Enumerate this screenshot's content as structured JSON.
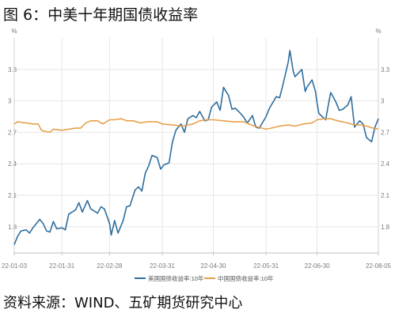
{
  "page": {
    "title": "图 6：中美十年期国债收益率",
    "source": "资料来源：WIND、五矿期货研究中心"
  },
  "colors": {
    "us": "#2e6e9e",
    "cn": "#e8a04a",
    "grid": "#e6e6e6",
    "axis_text": "#7a7a7a"
  },
  "chart_data": {
    "type": "line",
    "y_unit_left": "%",
    "y_unit_right": "%",
    "ylim": [
      1.55,
      3.6
    ],
    "yticks": [
      1.8,
      2.1,
      2.4,
      2.7,
      3,
      3.3
    ],
    "ytick_labels": [
      "1.8",
      "2.1",
      "2.4",
      "2.7",
      "3",
      "3.3"
    ],
    "xlim": [
      "2022-01-03",
      "2022-08-05"
    ],
    "xticks": [
      "2022-01-03",
      "2022-01-31",
      "2022-02-28",
      "2022-03-31",
      "2022-04-30",
      "2022-05-31",
      "2022-06-30",
      "2022-08-05"
    ],
    "xtick_labels": [
      "22-01-03",
      "22-01-31",
      "22-02-28",
      "22-03-31",
      "22-04-30",
      "22-05-31",
      "22-06-30",
      "22-08-05"
    ],
    "grid": true,
    "legend_position": "bottom",
    "series": [
      {
        "name": "美国国债收益率:10年",
        "color": "#2e6e9e",
        "points": [
          [
            "2022-01-03",
            1.63
          ],
          [
            "2022-01-05",
            1.71
          ],
          [
            "2022-01-07",
            1.76
          ],
          [
            "2022-01-10",
            1.77
          ],
          [
            "2022-01-12",
            1.74
          ],
          [
            "2022-01-14",
            1.79
          ],
          [
            "2022-01-18",
            1.87
          ],
          [
            "2022-01-20",
            1.83
          ],
          [
            "2022-01-22",
            1.76
          ],
          [
            "2022-01-24",
            1.75
          ],
          [
            "2022-01-26",
            1.85
          ],
          [
            "2022-01-28",
            1.78
          ],
          [
            "2022-01-31",
            1.79
          ],
          [
            "2022-02-02",
            1.77
          ],
          [
            "2022-02-04",
            1.92
          ],
          [
            "2022-02-08",
            1.96
          ],
          [
            "2022-02-10",
            2.03
          ],
          [
            "2022-02-12",
            1.94
          ],
          [
            "2022-02-15",
            2.05
          ],
          [
            "2022-02-17",
            1.97
          ],
          [
            "2022-02-21",
            1.93
          ],
          [
            "2022-02-23",
            1.99
          ],
          [
            "2022-02-25",
            1.97
          ],
          [
            "2022-02-28",
            1.83
          ],
          [
            "2022-03-01",
            1.72
          ],
          [
            "2022-03-03",
            1.86
          ],
          [
            "2022-03-05",
            1.74
          ],
          [
            "2022-03-08",
            1.86
          ],
          [
            "2022-03-10",
            1.99
          ],
          [
            "2022-03-12",
            2.0
          ],
          [
            "2022-03-15",
            2.15
          ],
          [
            "2022-03-17",
            2.18
          ],
          [
            "2022-03-19",
            2.14
          ],
          [
            "2022-03-21",
            2.31
          ],
          [
            "2022-03-23",
            2.38
          ],
          [
            "2022-03-25",
            2.48
          ],
          [
            "2022-03-28",
            2.46
          ],
          [
            "2022-03-30",
            2.35
          ],
          [
            "2022-04-01",
            2.39
          ],
          [
            "2022-04-04",
            2.41
          ],
          [
            "2022-04-06",
            2.61
          ],
          [
            "2022-04-08",
            2.72
          ],
          [
            "2022-04-11",
            2.78
          ],
          [
            "2022-04-13",
            2.7
          ],
          [
            "2022-04-15",
            2.83
          ],
          [
            "2022-04-18",
            2.86
          ],
          [
            "2022-04-20",
            2.84
          ],
          [
            "2022-04-22",
            2.9
          ],
          [
            "2022-04-25",
            2.81
          ],
          [
            "2022-04-27",
            2.82
          ],
          [
            "2022-04-29",
            2.94
          ],
          [
            "2022-05-02",
            2.99
          ],
          [
            "2022-05-04",
            2.91
          ],
          [
            "2022-05-06",
            3.13
          ],
          [
            "2022-05-09",
            3.05
          ],
          [
            "2022-05-11",
            2.92
          ],
          [
            "2022-05-13",
            2.93
          ],
          [
            "2022-05-16",
            2.88
          ],
          [
            "2022-05-18",
            2.84
          ],
          [
            "2022-05-20",
            2.79
          ],
          [
            "2022-05-23",
            2.86
          ],
          [
            "2022-05-25",
            2.75
          ],
          [
            "2022-05-27",
            2.74
          ],
          [
            "2022-05-31",
            2.85
          ],
          [
            "2022-06-02",
            2.93
          ],
          [
            "2022-06-06",
            3.04
          ],
          [
            "2022-06-08",
            3.03
          ],
          [
            "2022-06-10",
            3.16
          ],
          [
            "2022-06-13",
            3.37
          ],
          [
            "2022-06-14",
            3.48
          ],
          [
            "2022-06-16",
            3.28
          ],
          [
            "2022-06-17",
            3.23
          ],
          [
            "2022-06-21",
            3.3
          ],
          [
            "2022-06-23",
            3.09
          ],
          [
            "2022-06-24",
            3.13
          ],
          [
            "2022-06-27",
            3.2
          ],
          [
            "2022-06-29",
            3.09
          ],
          [
            "2022-06-30",
            2.98
          ],
          [
            "2022-07-01",
            2.88
          ],
          [
            "2022-07-05",
            2.82
          ],
          [
            "2022-07-07",
            3.0
          ],
          [
            "2022-07-08",
            3.08
          ],
          [
            "2022-07-11",
            2.99
          ],
          [
            "2022-07-13",
            2.91
          ],
          [
            "2022-07-15",
            2.92
          ],
          [
            "2022-07-18",
            2.96
          ],
          [
            "2022-07-20",
            3.04
          ],
          [
            "2022-07-22",
            2.75
          ],
          [
            "2022-07-25",
            2.81
          ],
          [
            "2022-07-27",
            2.78
          ],
          [
            "2022-07-29",
            2.65
          ],
          [
            "2022-08-01",
            2.61
          ],
          [
            "2022-08-03",
            2.75
          ],
          [
            "2022-08-05",
            2.83
          ]
        ]
      },
      {
        "name": "中国国债收益率:10年",
        "color": "#e8a04a",
        "points": [
          [
            "2022-01-03",
            2.78
          ],
          [
            "2022-01-05",
            2.8
          ],
          [
            "2022-01-10",
            2.79
          ],
          [
            "2022-01-14",
            2.78
          ],
          [
            "2022-01-17",
            2.78
          ],
          [
            "2022-01-19",
            2.72
          ],
          [
            "2022-01-21",
            2.71
          ],
          [
            "2022-01-24",
            2.7
          ],
          [
            "2022-01-26",
            2.73
          ],
          [
            "2022-01-31",
            2.72
          ],
          [
            "2022-02-04",
            2.73
          ],
          [
            "2022-02-08",
            2.74
          ],
          [
            "2022-02-11",
            2.74
          ],
          [
            "2022-02-14",
            2.79
          ],
          [
            "2022-02-17",
            2.81
          ],
          [
            "2022-02-21",
            2.81
          ],
          [
            "2022-02-24",
            2.78
          ],
          [
            "2022-02-28",
            2.82
          ],
          [
            "2022-03-03",
            2.82
          ],
          [
            "2022-03-07",
            2.83
          ],
          [
            "2022-03-10",
            2.81
          ],
          [
            "2022-03-14",
            2.81
          ],
          [
            "2022-03-18",
            2.79
          ],
          [
            "2022-03-22",
            2.8
          ],
          [
            "2022-03-28",
            2.8
          ],
          [
            "2022-03-31",
            2.78
          ],
          [
            "2022-04-06",
            2.77
          ],
          [
            "2022-04-12",
            2.76
          ],
          [
            "2022-04-18",
            2.78
          ],
          [
            "2022-04-22",
            2.81
          ],
          [
            "2022-04-26",
            2.82
          ],
          [
            "2022-04-30",
            2.82
          ],
          [
            "2022-05-06",
            2.81
          ],
          [
            "2022-05-12",
            2.8
          ],
          [
            "2022-05-18",
            2.8
          ],
          [
            "2022-05-24",
            2.76
          ],
          [
            "2022-05-31",
            2.73
          ],
          [
            "2022-06-03",
            2.74
          ],
          [
            "2022-06-08",
            2.76
          ],
          [
            "2022-06-13",
            2.77
          ],
          [
            "2022-06-17",
            2.76
          ],
          [
            "2022-06-22",
            2.78
          ],
          [
            "2022-06-27",
            2.79
          ],
          [
            "2022-06-30",
            2.82
          ],
          [
            "2022-07-04",
            2.83
          ],
          [
            "2022-07-08",
            2.83
          ],
          [
            "2022-07-12",
            2.81
          ],
          [
            "2022-07-18",
            2.79
          ],
          [
            "2022-07-22",
            2.77
          ],
          [
            "2022-07-26",
            2.77
          ],
          [
            "2022-07-29",
            2.76
          ],
          [
            "2022-08-02",
            2.74
          ],
          [
            "2022-08-05",
            2.73
          ]
        ]
      }
    ]
  }
}
